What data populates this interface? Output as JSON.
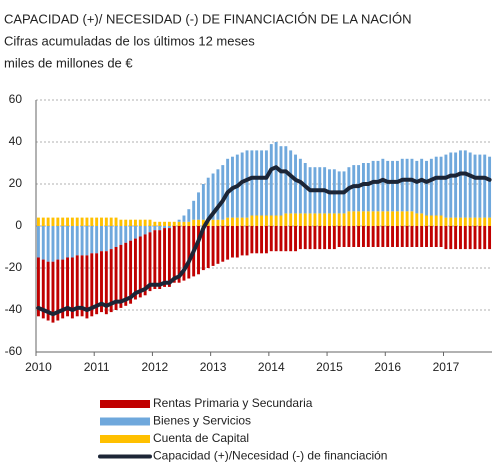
{
  "chart_data": {
    "type": "bar",
    "stacked": true,
    "title": "CAPACIDAD (+)/ NECESIDAD (-) DE FINANCIACIÓN  DE LA NACIÓN",
    "subtitle": "Cifras acumuladas de los últimos 12 meses",
    "y_axis_label": "miles de millones de €",
    "categories": [
      "2010",
      null,
      null,
      null,
      null,
      null,
      null,
      null,
      null,
      null,
      null,
      null,
      "2011",
      null,
      null,
      null,
      null,
      null,
      null,
      null,
      null,
      null,
      null,
      null,
      "2012",
      null,
      null,
      null,
      null,
      null,
      null,
      null,
      null,
      null,
      null,
      null,
      "2013",
      null,
      null,
      null,
      null,
      null,
      null,
      null,
      null,
      null,
      null,
      null,
      "2014",
      null,
      null,
      null,
      null,
      null,
      null,
      null,
      null,
      null,
      null,
      null,
      "2015",
      null,
      null,
      null,
      null,
      null,
      null,
      null,
      null,
      null,
      null,
      null,
      "2016",
      null,
      null,
      null,
      null,
      null,
      null,
      null,
      null,
      null,
      null,
      null,
      "2017",
      null,
      null,
      null,
      null,
      null,
      null,
      null,
      null,
      null
    ],
    "series": [
      {
        "name": "Rentas Primaria y Secundaria",
        "type": "bar",
        "color": "#c00000",
        "values": [
          -28,
          -28,
          -28,
          -29,
          -29,
          -28,
          -28,
          -29,
          -29,
          -29,
          -30,
          -30,
          -29,
          -29,
          -30,
          -30,
          -30,
          -30,
          -30,
          -30,
          -29,
          -29,
          -29,
          -28,
          -28,
          -28,
          -28,
          -28,
          -27,
          -27,
          -26,
          -25,
          -24,
          -23,
          -21,
          -20,
          -19,
          -18,
          -17,
          -16,
          -15,
          -15,
          -14,
          -14,
          -13,
          -13,
          -13,
          -13,
          -12,
          -12,
          -12,
          -12,
          -12,
          -12,
          -11,
          -11,
          -11,
          -11,
          -11,
          -11,
          -11,
          -11,
          -10,
          -10,
          -10,
          -10,
          -10,
          -10,
          -10,
          -10,
          -10,
          -10,
          -10,
          -10,
          -10,
          -10,
          -10,
          -10,
          -10,
          -10,
          -10,
          -10,
          -10,
          -10,
          -11,
          -11,
          -11,
          -11,
          -11,
          -11,
          -11,
          -11,
          -11,
          -11
        ]
      },
      {
        "name": "Bienes y Servicios",
        "type": "bar",
        "color": "#6fa8dc",
        "values": [
          -15,
          -16,
          -17,
          -17,
          -16,
          -16,
          -15,
          -15,
          -14,
          -14,
          -14,
          -13,
          -13,
          -12,
          -12,
          -11,
          -10,
          -9,
          -8,
          -7,
          -6,
          -5,
          -4,
          -3,
          -2,
          -2,
          -1,
          -1,
          0,
          1,
          3,
          6,
          9,
          13,
          17,
          20,
          22,
          24,
          26,
          28,
          29,
          30,
          31,
          32,
          31,
          31,
          31,
          31,
          34,
          35,
          33,
          32,
          30,
          28,
          26,
          24,
          22,
          22,
          22,
          22,
          21,
          21,
          20,
          20,
          21,
          22,
          22,
          23,
          23,
          24,
          24,
          25,
          24,
          24,
          24,
          25,
          25,
          25,
          25,
          26,
          26,
          27,
          28,
          28,
          30,
          31,
          31,
          32,
          32,
          31,
          30,
          30,
          30,
          29
        ]
      },
      {
        "name": "Cuenta de Capital",
        "type": "bar",
        "color": "#ffc000",
        "values": [
          4,
          4,
          4,
          4,
          4,
          4,
          4,
          4,
          4,
          4,
          4,
          4,
          4,
          4,
          4,
          4,
          4,
          3,
          3,
          3,
          3,
          3,
          3,
          3,
          2,
          2,
          2,
          2,
          2,
          2,
          2,
          2,
          3,
          3,
          3,
          3,
          3,
          3,
          3,
          4,
          4,
          4,
          4,
          4,
          5,
          5,
          5,
          5,
          5,
          5,
          5,
          6,
          6,
          6,
          6,
          6,
          6,
          6,
          6,
          6,
          6,
          6,
          6,
          6,
          7,
          7,
          7,
          7,
          7,
          7,
          7,
          7,
          7,
          7,
          7,
          7,
          7,
          7,
          6,
          6,
          5,
          5,
          5,
          5,
          4,
          4,
          4,
          4,
          4,
          4,
          4,
          4,
          4,
          4
        ]
      },
      {
        "name": "Capacidad (+)/Necesidad (-) de financiación",
        "type": "line",
        "color": "#1c2536",
        "values": [
          -39,
          -40,
          -41,
          -42,
          -41,
          -40,
          -39,
          -40,
          -39,
          -39,
          -40,
          -39,
          -38,
          -37,
          -38,
          -37,
          -36,
          -36,
          -35,
          -34,
          -32,
          -31,
          -30,
          -28,
          -28,
          -28,
          -27,
          -27,
          -25,
          -24,
          -21,
          -17,
          -12,
          -7,
          -1,
          3,
          6,
          9,
          12,
          16,
          18,
          19,
          21,
          22,
          23,
          23,
          23,
          23,
          27,
          28,
          26,
          26,
          24,
          22,
          21,
          19,
          17,
          17,
          17,
          17,
          16,
          16,
          16,
          16,
          18,
          19,
          19,
          20,
          20,
          21,
          21,
          22,
          21,
          21,
          21,
          22,
          22,
          22,
          21,
          22,
          21,
          22,
          23,
          23,
          23,
          24,
          24,
          25,
          25,
          24,
          23,
          23,
          23,
          22
        ]
      }
    ],
    "ylim": [
      -60,
      60
    ],
    "yticks": [
      -60,
      -40,
      -20,
      0,
      20,
      40,
      60
    ],
    "grid": true
  }
}
